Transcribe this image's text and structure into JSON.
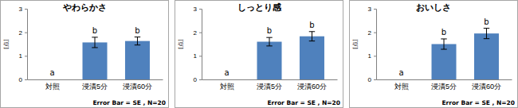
{
  "chart_data": [
    {
      "type": "bar",
      "title": "やわらかさ",
      "categories": [
        "対照",
        "浸漬5分",
        "浸漬60分"
      ],
      "values": [
        0,
        1.57,
        1.63
      ],
      "errors": [
        0,
        0.22,
        0.17
      ],
      "annotations": [
        "a",
        "b",
        "b"
      ],
      "y_label": "[点]",
      "note": "Error Bar = SE , N=20",
      "color": "#4f81bd",
      "ylim": [
        0,
        3
      ],
      "yticks": [
        0,
        1,
        2,
        3
      ]
    },
    {
      "type": "bar",
      "title": "しっとり感",
      "categories": [
        "対照",
        "浸漬5分",
        "浸漬60分"
      ],
      "values": [
        0,
        1.6,
        1.83
      ],
      "errors": [
        0,
        0.18,
        0.2
      ],
      "annotations": [
        "a",
        "b",
        "b"
      ],
      "y_label": "[点]",
      "note": "Error Bar = SE , N=20",
      "color": "#4f81bd",
      "ylim": [
        0,
        3
      ],
      "yticks": [
        0,
        1,
        2,
        3
      ]
    },
    {
      "type": "bar",
      "title": "おいしさ",
      "categories": [
        "対照",
        "浸漬5分",
        "浸漬60分"
      ],
      "values": [
        0,
        1.5,
        1.95
      ],
      "errors": [
        0,
        0.22,
        0.22
      ],
      "annotations": [
        "a",
        "b",
        "b"
      ],
      "y_label": "[点]",
      "note": "Error Bar = SE , N=20",
      "color": "#4f81bd",
      "ylim": [
        0,
        3
      ],
      "yticks": [
        0,
        1,
        2,
        3
      ]
    }
  ]
}
